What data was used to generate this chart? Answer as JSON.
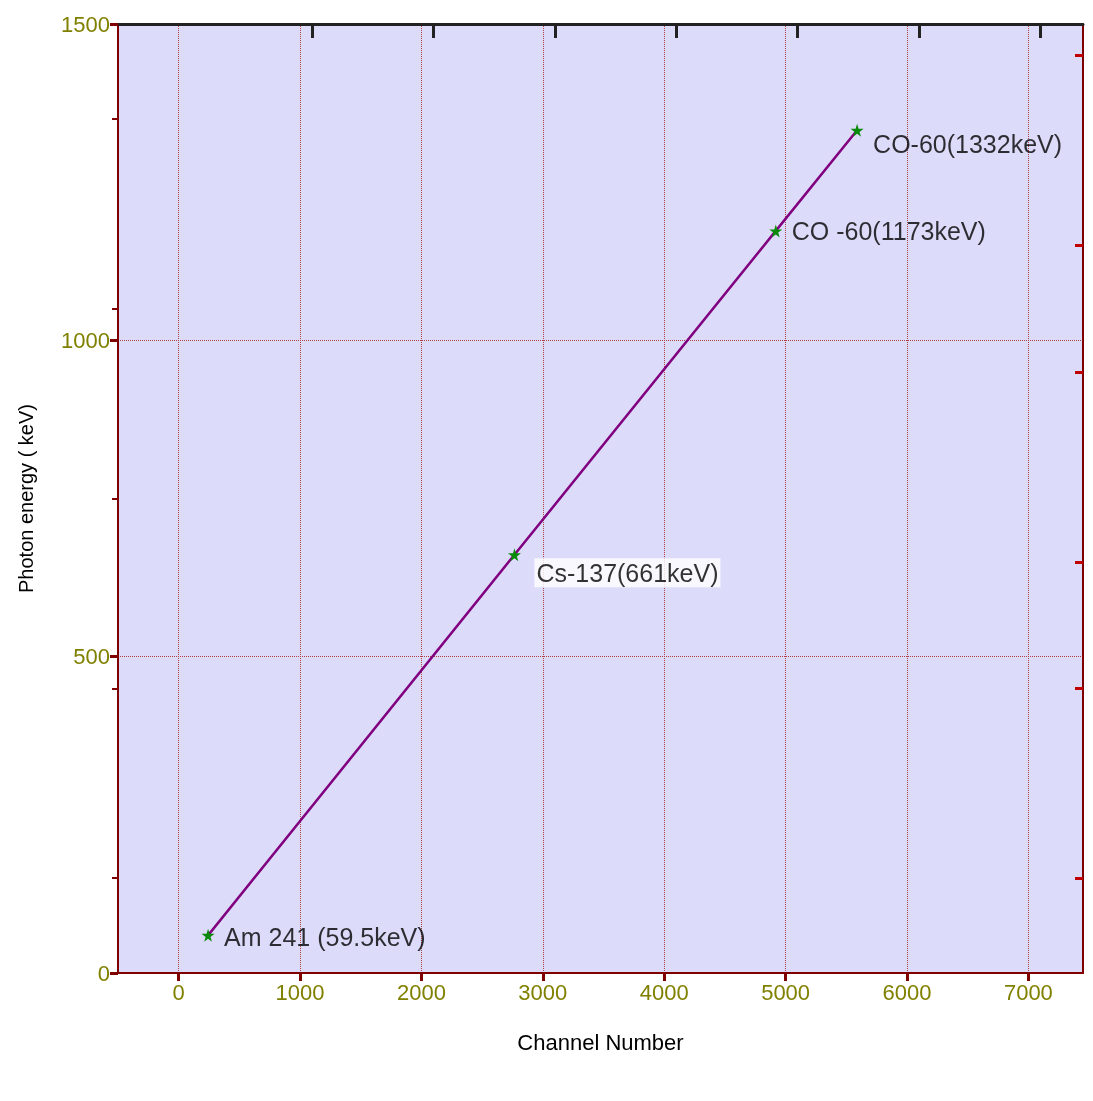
{
  "chart_data": {
    "type": "line",
    "xlabel": "Channel Number",
    "ylabel": "Photon energy ( keV)",
    "x": [
      242,
      2766,
      4919,
      5589
    ],
    "series": [
      {
        "color": "#800080",
        "values": [
          59.5,
          661,
          1173,
          1332
        ]
      }
    ],
    "xlim": [
      -500,
      7450
    ],
    "xticks": [
      0,
      1000,
      2000,
      3000,
      4000,
      5000,
      6000,
      7000
    ],
    "ylim": [
      0,
      1500
    ],
    "yticks": [
      0,
      500,
      1000,
      1500
    ],
    "grid": true,
    "marker": "star",
    "line_style": "solid",
    "annotations": [
      {
        "text": "Am 241 (59.5keV)",
        "x": 242,
        "y": 59.5
      },
      {
        "text": "Cs-137(661keV)",
        "x": 2766,
        "y": 661
      },
      {
        "text": "CO -60(1173keV)",
        "x": 4919,
        "y": 1173
      },
      {
        "text": "CO-60(1332keV)",
        "x": 5589,
        "y": 1332
      }
    ]
  }
}
